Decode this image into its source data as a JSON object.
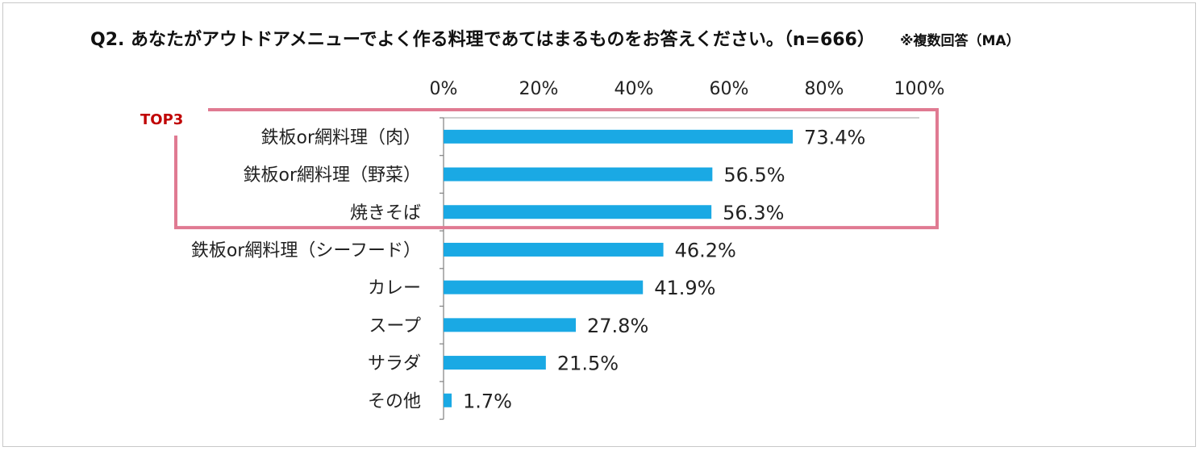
{
  "header": {
    "question": "Q2. あなたがアウトドアメニューでよく作る料理であてはまるものをお答えください。（n=666）",
    "note": "※複数回答（MA）"
  },
  "highlight": {
    "label": "TOP3",
    "count": 3,
    "color": "#e07a92",
    "label_color": "#c00000"
  },
  "colors": {
    "bar": "#1aa9e4",
    "axis": "#808080",
    "text": "#222222"
  },
  "chart_data": {
    "type": "bar",
    "orientation": "horizontal",
    "title": "Q2. あなたがアウトドアメニューでよく作る料理であてはまるものをお答えください。（n=666）",
    "xlabel": "",
    "ylabel": "",
    "xlim": [
      0,
      100
    ],
    "xticks": [
      "0%",
      "20%",
      "40%",
      "60%",
      "80%",
      "100%"
    ],
    "xtick_values": [
      0,
      20,
      40,
      60,
      80,
      100
    ],
    "categories": [
      "鉄板or網料理（肉）",
      "鉄板or網料理（野菜）",
      "焼きそば",
      "鉄板or網料理（シーフード）",
      "カレー",
      "スープ",
      "サラダ",
      "その他"
    ],
    "values": [
      73.4,
      56.5,
      56.3,
      46.2,
      41.9,
      27.8,
      21.5,
      1.7
    ],
    "value_labels": [
      "73.4%",
      "56.5%",
      "56.3%",
      "46.2%",
      "41.9%",
      "27.8%",
      "21.5%",
      "1.7%"
    ],
    "axis_position": "top",
    "grid": false,
    "legend": "none"
  }
}
